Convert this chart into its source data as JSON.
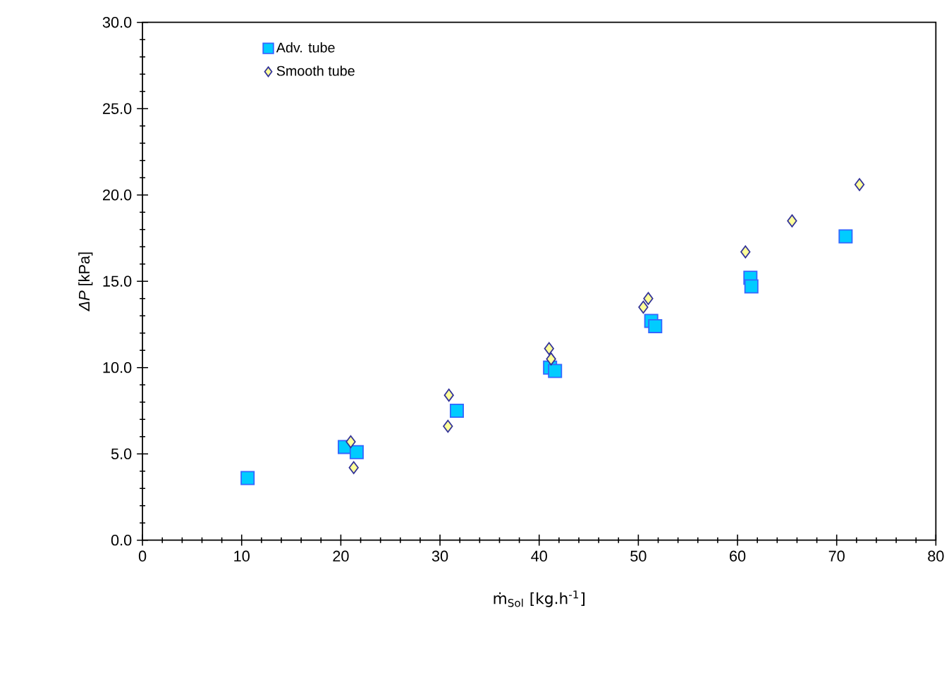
{
  "chart_data": {
    "type": "scatter",
    "xlabel": "ṁ$_{Sol}$  [kg.h$^{-1}$]",
    "ylabel": "*ΔP* [kPa]",
    "xlim": [
      0,
      80
    ],
    "xticks": [
      0,
      10,
      20,
      30,
      40,
      50,
      60,
      70,
      80
    ],
    "ylim": [
      0,
      30
    ],
    "yticks": [
      {
        "value": 0,
        "label": "0.0"
      },
      {
        "value": 5,
        "label": "5.0"
      },
      {
        "value": 10,
        "label": "10.0"
      },
      {
        "value": 15,
        "label": "15.0"
      },
      {
        "value": 20,
        "label": "20.0"
      },
      {
        "value": 25,
        "label": "25.0"
      },
      {
        "value": 30,
        "label": "30.0"
      }
    ],
    "grid": false,
    "legend": "top left",
    "series": [
      {
        "name": "Adv. tube",
        "color": "#00ccff",
        "marker": "square",
        "x": [
          10.6,
          20.4,
          21.6,
          31.7,
          41.1,
          41.6,
          51.3,
          51.7,
          61.3,
          61.4,
          70.9
        ],
        "values": [
          3.6,
          5.4,
          5.1,
          7.5,
          10.0,
          9.8,
          12.7,
          12.4,
          15.2,
          14.7,
          17.6
        ]
      },
      {
        "name": "Smooth tube",
        "color": "#ffff99",
        "marker": "diamond",
        "x": [
          21.0,
          21.3,
          30.9,
          30.8,
          41.0,
          41.2,
          51.0,
          50.5,
          60.8,
          65.5,
          72.3
        ],
        "values": [
          5.7,
          4.2,
          8.4,
          6.6,
          11.1,
          10.5,
          14.0,
          13.5,
          16.7,
          18.5,
          20.6
        ]
      }
    ]
  }
}
